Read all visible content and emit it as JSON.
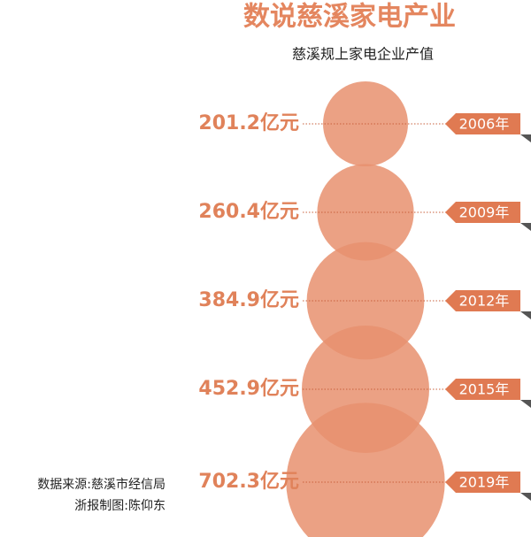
{
  "chart_data": {
    "type": "bubble",
    "title": "数说慈溪家电产业",
    "subtitle": "慈溪规上家电企业产值",
    "categories": [
      "2006年",
      "2009年",
      "2012年",
      "2015年",
      "2019年"
    ],
    "values": [
      201.2,
      260.4,
      384.9,
      452.9,
      702.3
    ],
    "value_labels": [
      "201.2亿元",
      "260.4亿元",
      "384.9亿元",
      "452.9亿元",
      "702.3亿元"
    ],
    "color": "#e8906e",
    "source": "数据来源:慈溪市经信局",
    "credit": "浙报制图:陈仰东"
  }
}
